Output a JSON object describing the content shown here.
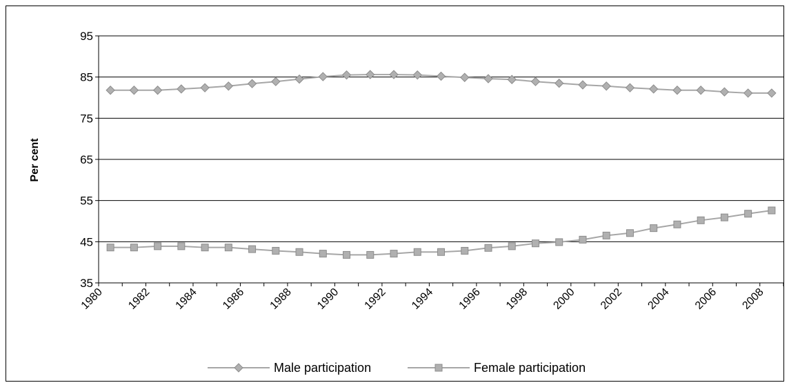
{
  "chart_data": {
    "type": "line",
    "title": "",
    "xlabel": "",
    "ylabel": "Per cent",
    "ylim": [
      35,
      95
    ],
    "yticks": [
      35,
      45,
      55,
      65,
      75,
      85,
      95
    ],
    "xtick_labels": [
      "1980",
      "1982",
      "1984",
      "1986",
      "1988",
      "1990",
      "1992",
      "1994",
      "1996",
      "1998",
      "2000",
      "2002",
      "2004",
      "2006",
      "2008"
    ],
    "x": [
      1980,
      1981,
      1982,
      1983,
      1984,
      1985,
      1986,
      1987,
      1988,
      1989,
      1990,
      1991,
      1992,
      1993,
      1994,
      1995,
      1996,
      1997,
      1998,
      1999,
      2000,
      2001,
      2002,
      2003,
      2004,
      2005,
      2006,
      2007,
      2008
    ],
    "grid": "horizontal",
    "legend_position": "bottom",
    "series": [
      {
        "name": "Male participation",
        "marker": "diamond",
        "color": "#a6a6a6",
        "values": [
          81.8,
          81.8,
          81.8,
          82.1,
          82.4,
          82.8,
          83.4,
          83.9,
          84.5,
          85.1,
          85.5,
          85.6,
          85.6,
          85.5,
          85.2,
          84.9,
          84.6,
          84.4,
          83.9,
          83.5,
          83.1,
          82.8,
          82.4,
          82.1,
          81.8,
          81.8,
          81.4,
          81.1,
          81.1
        ]
      },
      {
        "name": "Female participation",
        "marker": "square",
        "color": "#a6a6a6",
        "values": [
          43.6,
          43.6,
          43.9,
          43.9,
          43.6,
          43.6,
          43.2,
          42.8,
          42.5,
          42.1,
          41.8,
          41.8,
          42.1,
          42.5,
          42.5,
          42.8,
          43.5,
          43.9,
          44.6,
          44.9,
          45.5,
          46.5,
          47.1,
          48.3,
          49.2,
          50.2,
          50.9,
          51.8,
          52.6
        ]
      }
    ]
  },
  "colors": {
    "line": "#a6a6a6",
    "marker_stroke": "#8c8c8c",
    "grid": "#000000",
    "frame": "#000000"
  }
}
